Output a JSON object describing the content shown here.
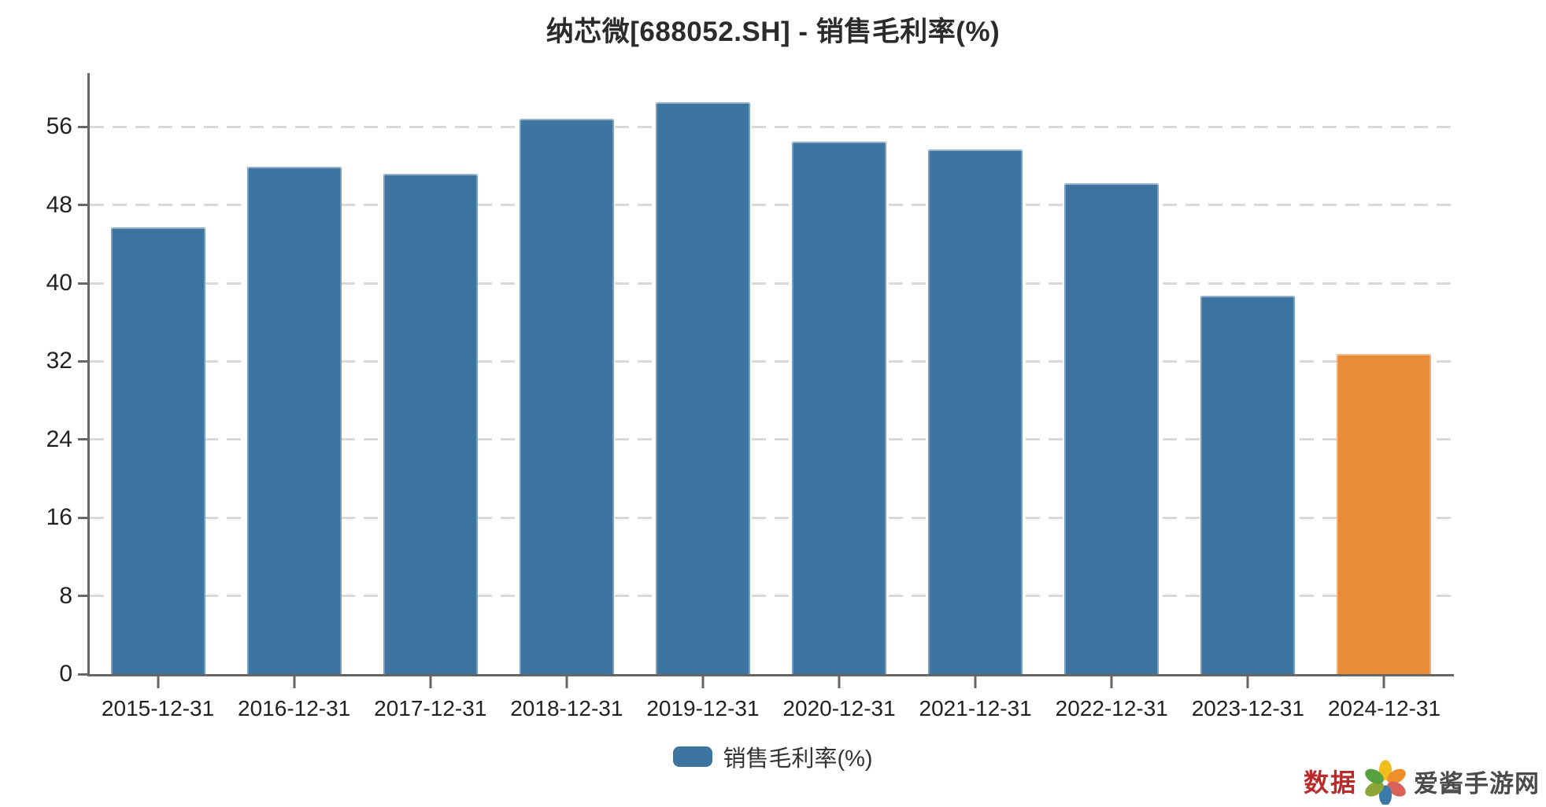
{
  "title": "纳芯微[688052.SH] - 销售毛利率(%)",
  "legend": {
    "label": "销售毛利率(%)",
    "swatch_color": "#3d74a0"
  },
  "footer": {
    "data_label": "数据",
    "data_label_color": "#b92c2c",
    "site_name": "爱酱手游网",
    "site_name_color": "#4b4b4b",
    "logo_icon": "pinwheel-flower-icon",
    "logo_petal_colors": [
      "#f2bd1d",
      "#ee8f2b",
      "#d8615a",
      "#3a79a9",
      "#8fa437",
      "#55a23f"
    ]
  },
  "colors": {
    "bar": "#3d74a0",
    "highlight_bar": "#e88c3a",
    "grid": "#d9d9d9",
    "axis": "#666666",
    "tick_text": "#222222",
    "title_text": "#2b2b2b"
  },
  "chart_data": {
    "type": "bar",
    "title": "纳芯微[688052.SH] - 销售毛利率(%)",
    "categories": [
      "2015-12-31",
      "2016-12-31",
      "2017-12-31",
      "2018-12-31",
      "2019-12-31",
      "2020-12-31",
      "2021-12-31",
      "2022-12-31",
      "2023-12-31",
      "2024-12-31"
    ],
    "series": [
      {
        "name": "销售毛利率(%)",
        "values": [
          45.7,
          51.9,
          51.2,
          56.8,
          58.5,
          54.5,
          53.7,
          50.2,
          38.7,
          32.8
        ]
      }
    ],
    "bar_colors": [
      "#3d74a0",
      "#3d74a0",
      "#3d74a0",
      "#3d74a0",
      "#3d74a0",
      "#3d74a0",
      "#3d74a0",
      "#3d74a0",
      "#3d74a0",
      "#e88c3a"
    ],
    "xlabel": "",
    "ylabel": "",
    "ylim": [
      0,
      61.5
    ],
    "yticks": [
      0,
      8,
      16,
      24,
      32,
      40,
      48,
      56
    ],
    "grid": "horizontal-dashed",
    "legend_position": "bottom"
  }
}
